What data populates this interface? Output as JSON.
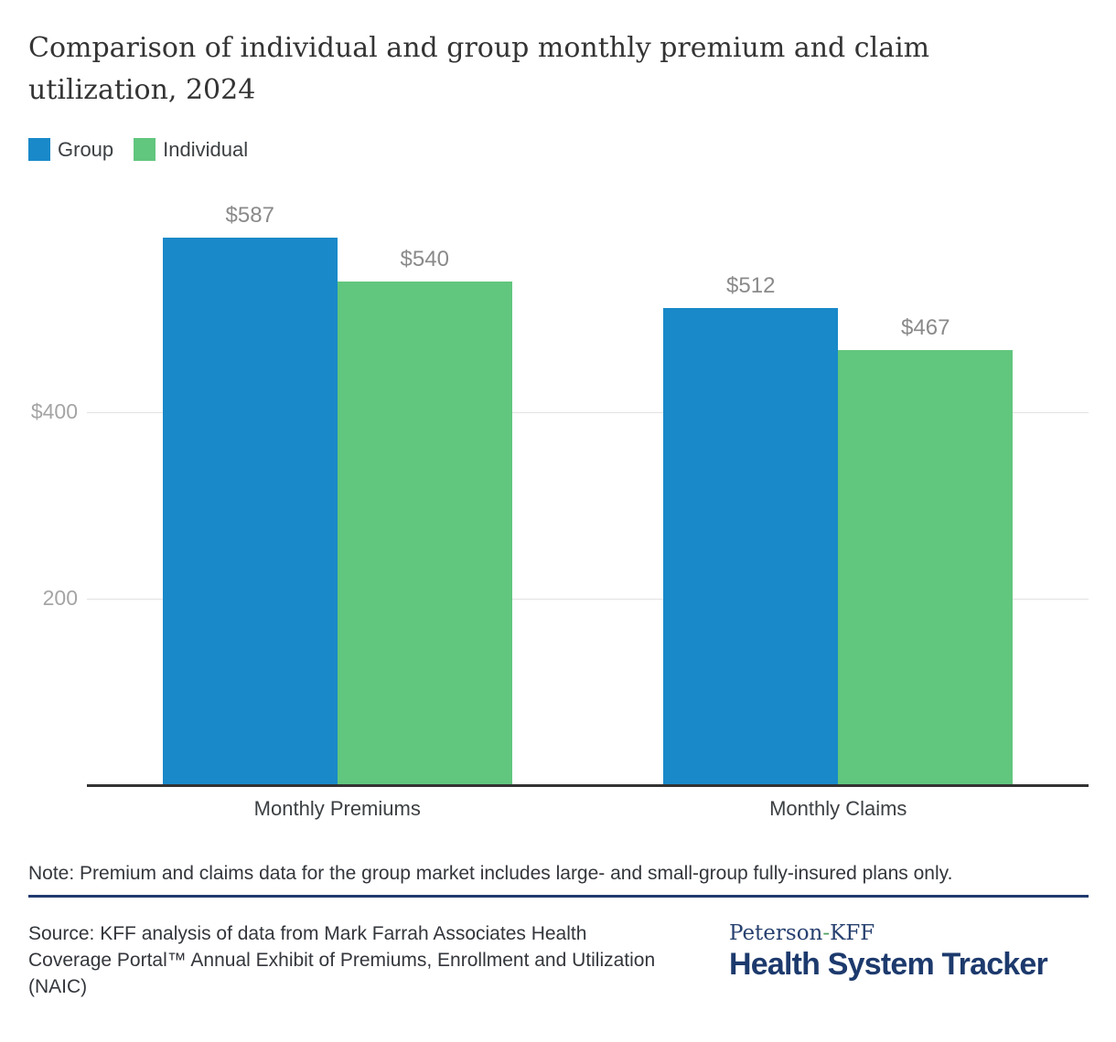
{
  "page": {
    "title": "Comparison of individual and group monthly premium and claim utilization, 2024"
  },
  "legend": {
    "items": [
      {
        "label": "Group",
        "color": "#1989c9"
      },
      {
        "label": "Individual",
        "color": "#61c67e"
      }
    ]
  },
  "chart_data": {
    "type": "bar",
    "title": "Comparison of individual and group monthly premium and claim utilization, 2024",
    "categories": [
      "Monthly Premiums",
      "Monthly Claims"
    ],
    "series": [
      {
        "name": "Group",
        "color": "#1989c9",
        "values": [
          587,
          512
        ],
        "labels": [
          "$587",
          "$512"
        ]
      },
      {
        "name": "Individual",
        "color": "#61c67e",
        "values": [
          540,
          467
        ],
        "labels": [
          "$540",
          "$467"
        ]
      }
    ],
    "ylim": [
      0,
      620
    ],
    "yticks": [
      {
        "value": 200,
        "label": "200"
      },
      {
        "value": 400,
        "label": "$400"
      }
    ],
    "grid": "horizontal",
    "legend_position": "top-left",
    "value_prefix": "$"
  },
  "note": {
    "text": "Note: Premium and claims data for the group market includes large- and small-group fully-insured plans only."
  },
  "source": {
    "text": "Source: KFF analysis of data from Mark Farrah Associates Health Coverage Portal™ Annual Exhibit of Premiums, Enrollment and Utilization (NAIC)"
  },
  "brand": {
    "name_pre": "Peterson",
    "hyphen": "-",
    "name_post": "KFF",
    "product": "Health System Tracker"
  },
  "colors": {
    "group_bar": "#1989c9",
    "individual_bar": "#61c67e",
    "gridline": "#e2e2e2",
    "axis": "#333333",
    "value_label": "#8a8a8a",
    "tick_label": "#a5a5a5",
    "navy_rule": "#203a70",
    "brand_navy": "#1d3a6d",
    "brand_hyphen_green": "#4da05f"
  }
}
